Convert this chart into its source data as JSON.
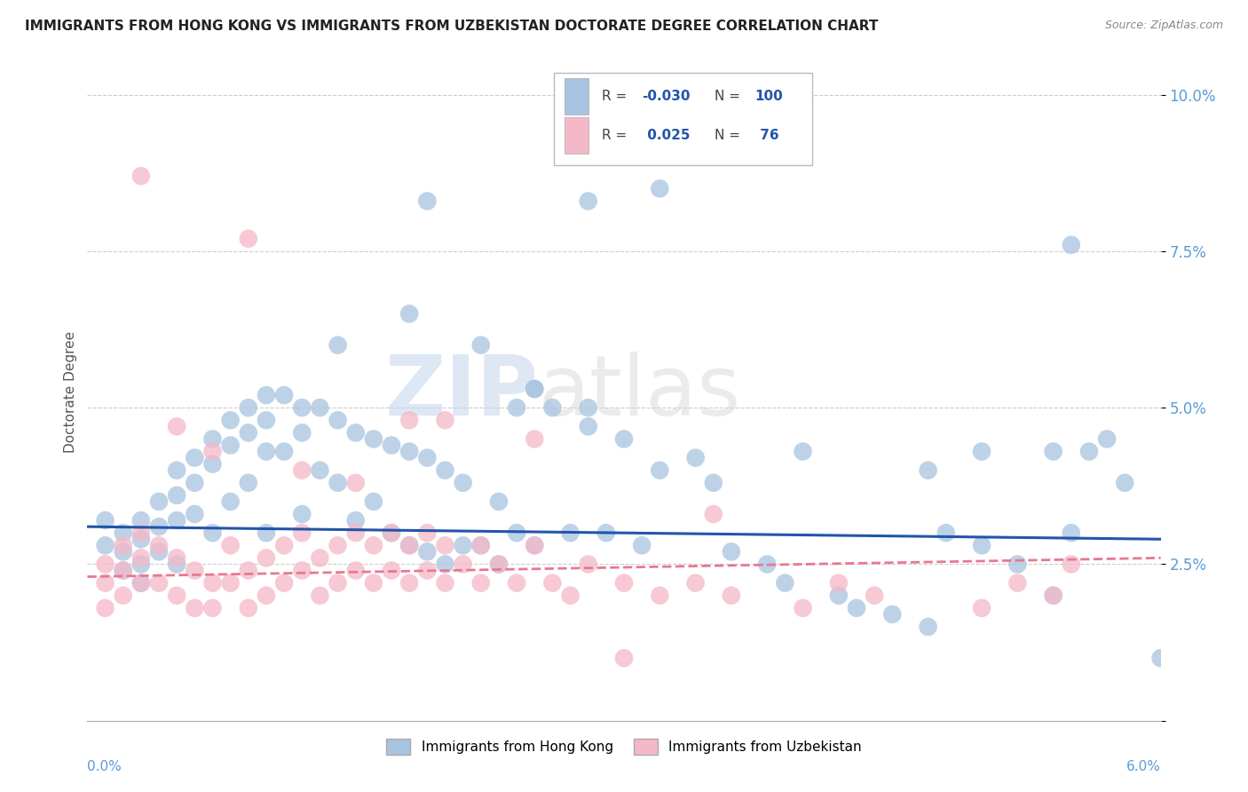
{
  "title": "IMMIGRANTS FROM HONG KONG VS IMMIGRANTS FROM UZBEKISTAN DOCTORATE DEGREE CORRELATION CHART",
  "source": "Source: ZipAtlas.com",
  "ylabel": "Doctorate Degree",
  "yticks": [
    0.0,
    0.025,
    0.05,
    0.075,
    0.1
  ],
  "ytick_labels": [
    "",
    "2.5%",
    "5.0%",
    "7.5%",
    "10.0%"
  ],
  "xlim": [
    0.0,
    0.06
  ],
  "ylim": [
    0.0,
    0.105
  ],
  "hk_color": "#a8c4e0",
  "uz_color": "#f4b8c8",
  "hk_line_color": "#2255aa",
  "uz_line_color": "#e87890",
  "watermark1": "ZIP",
  "watermark2": "atlas",
  "hk_trend_x": [
    0.0,
    0.06
  ],
  "hk_trend_y": [
    0.031,
    0.029
  ],
  "uz_trend_x": [
    0.0,
    0.06
  ],
  "uz_trend_y": [
    0.023,
    0.026
  ],
  "hk_scatter_x": [
    0.001,
    0.001,
    0.002,
    0.002,
    0.002,
    0.003,
    0.003,
    0.003,
    0.003,
    0.004,
    0.004,
    0.004,
    0.005,
    0.005,
    0.005,
    0.005,
    0.006,
    0.006,
    0.006,
    0.007,
    0.007,
    0.007,
    0.008,
    0.008,
    0.008,
    0.009,
    0.009,
    0.009,
    0.01,
    0.01,
    0.01,
    0.01,
    0.011,
    0.011,
    0.012,
    0.012,
    0.012,
    0.013,
    0.013,
    0.014,
    0.014,
    0.015,
    0.015,
    0.016,
    0.016,
    0.017,
    0.017,
    0.018,
    0.018,
    0.019,
    0.019,
    0.02,
    0.02,
    0.021,
    0.021,
    0.022,
    0.023,
    0.023,
    0.024,
    0.024,
    0.025,
    0.025,
    0.026,
    0.027,
    0.028,
    0.029,
    0.03,
    0.031,
    0.032,
    0.034,
    0.035,
    0.036,
    0.038,
    0.039,
    0.04,
    0.042,
    0.043,
    0.045,
    0.047,
    0.048,
    0.05,
    0.052,
    0.054,
    0.054,
    0.055,
    0.056,
    0.058,
    0.032,
    0.019,
    0.022,
    0.025,
    0.028,
    0.028,
    0.018,
    0.014,
    0.047,
    0.055,
    0.057,
    0.05,
    0.06
  ],
  "hk_scatter_y": [
    0.032,
    0.028,
    0.03,
    0.027,
    0.024,
    0.032,
    0.029,
    0.025,
    0.022,
    0.035,
    0.031,
    0.027,
    0.04,
    0.036,
    0.032,
    0.025,
    0.042,
    0.038,
    0.033,
    0.045,
    0.041,
    0.03,
    0.048,
    0.044,
    0.035,
    0.05,
    0.046,
    0.038,
    0.052,
    0.048,
    0.043,
    0.03,
    0.052,
    0.043,
    0.05,
    0.046,
    0.033,
    0.05,
    0.04,
    0.048,
    0.038,
    0.046,
    0.032,
    0.045,
    0.035,
    0.044,
    0.03,
    0.043,
    0.028,
    0.042,
    0.027,
    0.04,
    0.025,
    0.038,
    0.028,
    0.028,
    0.035,
    0.025,
    0.05,
    0.03,
    0.053,
    0.028,
    0.05,
    0.03,
    0.05,
    0.03,
    0.045,
    0.028,
    0.04,
    0.042,
    0.038,
    0.027,
    0.025,
    0.022,
    0.043,
    0.02,
    0.018,
    0.017,
    0.015,
    0.03,
    0.028,
    0.025,
    0.02,
    0.043,
    0.03,
    0.043,
    0.038,
    0.085,
    0.083,
    0.06,
    0.053,
    0.047,
    0.083,
    0.065,
    0.06,
    0.04,
    0.076,
    0.045,
    0.043,
    0.01
  ],
  "uz_scatter_x": [
    0.001,
    0.001,
    0.001,
    0.002,
    0.002,
    0.002,
    0.003,
    0.003,
    0.003,
    0.004,
    0.004,
    0.005,
    0.005,
    0.006,
    0.006,
    0.007,
    0.007,
    0.008,
    0.008,
    0.009,
    0.009,
    0.01,
    0.01,
    0.011,
    0.011,
    0.012,
    0.012,
    0.013,
    0.013,
    0.014,
    0.014,
    0.015,
    0.015,
    0.016,
    0.016,
    0.017,
    0.017,
    0.018,
    0.018,
    0.019,
    0.019,
    0.02,
    0.02,
    0.021,
    0.022,
    0.022,
    0.023,
    0.024,
    0.025,
    0.026,
    0.027,
    0.028,
    0.03,
    0.032,
    0.034,
    0.036,
    0.04,
    0.042,
    0.044,
    0.05,
    0.052,
    0.054,
    0.005,
    0.007,
    0.015,
    0.018,
    0.025,
    0.035,
    0.055,
    0.003,
    0.009,
    0.012,
    0.02,
    0.03
  ],
  "uz_scatter_y": [
    0.025,
    0.022,
    0.018,
    0.028,
    0.024,
    0.02,
    0.03,
    0.026,
    0.022,
    0.028,
    0.022,
    0.026,
    0.02,
    0.024,
    0.018,
    0.022,
    0.018,
    0.028,
    0.022,
    0.024,
    0.018,
    0.026,
    0.02,
    0.028,
    0.022,
    0.03,
    0.024,
    0.026,
    0.02,
    0.028,
    0.022,
    0.03,
    0.024,
    0.028,
    0.022,
    0.03,
    0.024,
    0.028,
    0.022,
    0.03,
    0.024,
    0.028,
    0.022,
    0.025,
    0.028,
    0.022,
    0.025,
    0.022,
    0.028,
    0.022,
    0.02,
    0.025,
    0.022,
    0.02,
    0.022,
    0.02,
    0.018,
    0.022,
    0.02,
    0.018,
    0.022,
    0.02,
    0.047,
    0.043,
    0.038,
    0.048,
    0.045,
    0.033,
    0.025,
    0.087,
    0.077,
    0.04,
    0.048,
    0.01
  ]
}
